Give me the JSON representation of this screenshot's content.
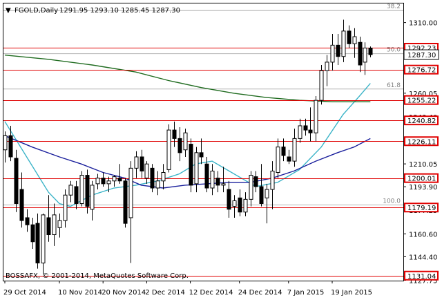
{
  "chart_data": {
    "type": "candlestick",
    "title": {
      "symbol": "FGOLD,Daily",
      "ohlc": "1291.95 1293.10 1285.45 1287.30"
    },
    "copyright": "BOSSAFX, © 2001-2014, MetaQuotes Software Corp.",
    "ylim": [
      1127.5,
      1323.5
    ],
    "y_ticks": [
      "1310.00",
      "1293.80",
      "1276.70",
      "1260.05",
      "1243.40",
      "1226.75",
      "1210.05",
      "1193.90",
      "1177.25",
      "1160.60",
      "1144.40",
      "1127.75"
    ],
    "x_labels": [
      "29 Oct 2014",
      "10 Nov 2014",
      "20 Nov 2014",
      "2 Dec 2014",
      "12 Dec 2014",
      "24 Dec 2014",
      "7 Jan 2015",
      "19 Jan 2015"
    ],
    "x_label_index": [
      0,
      10,
      18,
      26,
      34,
      43,
      52,
      60
    ],
    "levels": [
      {
        "label": "1292.23",
        "value": 1292.23
      },
      {
        "label": "1276.72",
        "value": 1276.72
      },
      {
        "label": "1255.22",
        "value": 1255.22
      },
      {
        "label": "1240.82",
        "value": 1240.82
      },
      {
        "label": "1226.11",
        "value": 1226.11
      },
      {
        "label": "1200.01",
        "value": 1200.01
      },
      {
        "label": "1179.19",
        "value": 1179.19
      },
      {
        "label": "1131.04",
        "value": 1131.04
      }
    ],
    "current_price": {
      "label": "1287.30",
      "value": 1287.3
    },
    "fibonacci": [
      {
        "label": "38.2",
        "value": 1318.5
      },
      {
        "label": "50.0",
        "value": 1288.0
      },
      {
        "label": "61.8",
        "value": 1263.0
      },
      {
        "label": "100.0",
        "value": 1181.0
      }
    ],
    "candles": [
      {
        "o": 1220,
        "h": 1233,
        "l": 1211,
        "c": 1230
      },
      {
        "o": 1230,
        "h": 1237,
        "l": 1212,
        "c": 1215
      },
      {
        "o": 1214,
        "h": 1220,
        "l": 1176,
        "c": 1182
      },
      {
        "o": 1192,
        "h": 1204,
        "l": 1165,
        "c": 1170
      },
      {
        "o": 1172,
        "h": 1178,
        "l": 1162,
        "c": 1167
      },
      {
        "o": 1167,
        "h": 1172,
        "l": 1150,
        "c": 1155
      },
      {
        "o": 1168,
        "h": 1175,
        "l": 1136,
        "c": 1140
      },
      {
        "o": 1140,
        "h": 1175,
        "l": 1132,
        "c": 1174
      },
      {
        "o": 1172,
        "h": 1188,
        "l": 1155,
        "c": 1160
      },
      {
        "o": 1160,
        "h": 1182,
        "l": 1152,
        "c": 1174
      },
      {
        "o": 1165,
        "h": 1175,
        "l": 1158,
        "c": 1170
      },
      {
        "o": 1170,
        "h": 1192,
        "l": 1165,
        "c": 1188
      },
      {
        "o": 1188,
        "h": 1198,
        "l": 1183,
        "c": 1195
      },
      {
        "o": 1194,
        "h": 1198,
        "l": 1178,
        "c": 1182
      },
      {
        "o": 1182,
        "h": 1205,
        "l": 1180,
        "c": 1202
      },
      {
        "o": 1202,
        "h": 1206,
        "l": 1175,
        "c": 1180
      },
      {
        "o": 1178,
        "h": 1198,
        "l": 1170,
        "c": 1195
      },
      {
        "o": 1196,
        "h": 1203,
        "l": 1192,
        "c": 1200
      },
      {
        "o": 1200,
        "h": 1204,
        "l": 1194,
        "c": 1196
      },
      {
        "o": 1196,
        "h": 1201,
        "l": 1190,
        "c": 1198
      },
      {
        "o": 1198,
        "h": 1202,
        "l": 1194,
        "c": 1201
      },
      {
        "o": 1200,
        "h": 1210,
        "l": 1196,
        "c": 1198
      },
      {
        "o": 1198,
        "h": 1200,
        "l": 1165,
        "c": 1168
      },
      {
        "o": 1172,
        "h": 1212,
        "l": 1140,
        "c": 1207
      },
      {
        "o": 1207,
        "h": 1219,
        "l": 1200,
        "c": 1215
      },
      {
        "o": 1215,
        "h": 1220,
        "l": 1200,
        "c": 1205
      },
      {
        "o": 1200,
        "h": 1212,
        "l": 1196,
        "c": 1210
      },
      {
        "o": 1207,
        "h": 1210,
        "l": 1190,
        "c": 1193
      },
      {
        "o": 1193,
        "h": 1205,
        "l": 1188,
        "c": 1198
      },
      {
        "o": 1198,
        "h": 1210,
        "l": 1192,
        "c": 1204
      },
      {
        "o": 1206,
        "h": 1238,
        "l": 1204,
        "c": 1234
      },
      {
        "o": 1234,
        "h": 1240,
        "l": 1222,
        "c": 1228
      },
      {
        "o": 1228,
        "h": 1236,
        "l": 1212,
        "c": 1218
      },
      {
        "o": 1220,
        "h": 1235,
        "l": 1215,
        "c": 1232
      },
      {
        "o": 1224,
        "h": 1228,
        "l": 1190,
        "c": 1195
      },
      {
        "o": 1196,
        "h": 1222,
        "l": 1190,
        "c": 1218
      },
      {
        "o": 1218,
        "h": 1228,
        "l": 1210,
        "c": 1215
      },
      {
        "o": 1210,
        "h": 1215,
        "l": 1190,
        "c": 1193
      },
      {
        "o": 1193,
        "h": 1210,
        "l": 1188,
        "c": 1205
      },
      {
        "o": 1200,
        "h": 1205,
        "l": 1190,
        "c": 1195
      },
      {
        "o": 1195,
        "h": 1208,
        "l": 1190,
        "c": 1196
      },
      {
        "o": 1192,
        "h": 1198,
        "l": 1172,
        "c": 1178
      },
      {
        "o": 1180,
        "h": 1188,
        "l": 1172,
        "c": 1184
      },
      {
        "o": 1186,
        "h": 1192,
        "l": 1173,
        "c": 1176
      },
      {
        "o": 1176,
        "h": 1190,
        "l": 1173,
        "c": 1185
      },
      {
        "o": 1185,
        "h": 1205,
        "l": 1180,
        "c": 1202
      },
      {
        "o": 1201,
        "h": 1205,
        "l": 1190,
        "c": 1194
      },
      {
        "o": 1194,
        "h": 1210,
        "l": 1180,
        "c": 1182
      },
      {
        "o": 1186,
        "h": 1196,
        "l": 1168,
        "c": 1192
      },
      {
        "o": 1192,
        "h": 1212,
        "l": 1178,
        "c": 1205
      },
      {
        "o": 1204,
        "h": 1228,
        "l": 1200,
        "c": 1222
      },
      {
        "o": 1222,
        "h": 1228,
        "l": 1212,
        "c": 1216
      },
      {
        "o": 1215,
        "h": 1220,
        "l": 1210,
        "c": 1212
      },
      {
        "o": 1212,
        "h": 1235,
        "l": 1208,
        "c": 1228
      },
      {
        "o": 1228,
        "h": 1242,
        "l": 1225,
        "c": 1237
      },
      {
        "o": 1237,
        "h": 1242,
        "l": 1230,
        "c": 1234
      },
      {
        "o": 1234,
        "h": 1250,
        "l": 1226,
        "c": 1232
      },
      {
        "o": 1232,
        "h": 1258,
        "l": 1226,
        "c": 1255
      },
      {
        "o": 1255,
        "h": 1280,
        "l": 1252,
        "c": 1276
      },
      {
        "o": 1276,
        "h": 1287,
        "l": 1265,
        "c": 1282
      },
      {
        "o": 1282,
        "h": 1302,
        "l": 1276,
        "c": 1294
      },
      {
        "o": 1294,
        "h": 1302,
        "l": 1280,
        "c": 1286
      },
      {
        "o": 1286,
        "h": 1312,
        "l": 1282,
        "c": 1304
      },
      {
        "o": 1304,
        "h": 1308,
        "l": 1292,
        "c": 1295
      },
      {
        "o": 1295,
        "h": 1306,
        "l": 1285,
        "c": 1300
      },
      {
        "o": 1296,
        "h": 1300,
        "l": 1275,
        "c": 1280
      },
      {
        "o": 1282,
        "h": 1296,
        "l": 1273,
        "c": 1292
      },
      {
        "o": 1291.95,
        "h": 1293.1,
        "l": 1285.45,
        "c": 1287.3
      }
    ],
    "series": [
      {
        "color": "#3cb4c8",
        "values": [
          {
            "i": 0,
            "v": 1240
          },
          {
            "i": 4,
            "v": 1215
          },
          {
            "i": 8,
            "v": 1190
          },
          {
            "i": 10,
            "v": 1182
          },
          {
            "i": 12,
            "v": 1180
          },
          {
            "i": 16,
            "v": 1188
          },
          {
            "i": 20,
            "v": 1193
          },
          {
            "i": 24,
            "v": 1195
          },
          {
            "i": 28,
            "v": 1198
          },
          {
            "i": 32,
            "v": 1203
          },
          {
            "i": 35,
            "v": 1210
          },
          {
            "i": 38,
            "v": 1212
          },
          {
            "i": 42,
            "v": 1203
          },
          {
            "i": 46,
            "v": 1194
          },
          {
            "i": 50,
            "v": 1197
          },
          {
            "i": 54,
            "v": 1206
          },
          {
            "i": 58,
            "v": 1222
          },
          {
            "i": 62,
            "v": 1245
          },
          {
            "i": 65,
            "v": 1258
          },
          {
            "i": 67,
            "v": 1267
          }
        ]
      },
      {
        "color": "#1a1f9c",
        "values": [
          {
            "i": 0,
            "v": 1230
          },
          {
            "i": 5,
            "v": 1222
          },
          {
            "i": 10,
            "v": 1215
          },
          {
            "i": 14,
            "v": 1210
          },
          {
            "i": 18,
            "v": 1204
          },
          {
            "i": 22,
            "v": 1200
          },
          {
            "i": 25,
            "v": 1195
          },
          {
            "i": 29,
            "v": 1193
          },
          {
            "i": 33,
            "v": 1195
          },
          {
            "i": 37,
            "v": 1196
          },
          {
            "i": 41,
            "v": 1197
          },
          {
            "i": 45,
            "v": 1197
          },
          {
            "i": 49,
            "v": 1200
          },
          {
            "i": 53,
            "v": 1205
          },
          {
            "i": 57,
            "v": 1212
          },
          {
            "i": 61,
            "v": 1218
          },
          {
            "i": 64,
            "v": 1222
          },
          {
            "i": 67,
            "v": 1228
          }
        ]
      },
      {
        "color": "#1f6b1f",
        "values": [
          {
            "i": 0,
            "v": 1287
          },
          {
            "i": 8,
            "v": 1284
          },
          {
            "i": 16,
            "v": 1280
          },
          {
            "i": 24,
            "v": 1275
          },
          {
            "i": 30,
            "v": 1269
          },
          {
            "i": 36,
            "v": 1264
          },
          {
            "i": 42,
            "v": 1260
          },
          {
            "i": 48,
            "v": 1257
          },
          {
            "i": 54,
            "v": 1255
          },
          {
            "i": 60,
            "v": 1254
          },
          {
            "i": 67,
            "v": 1254
          }
        ]
      }
    ],
    "grid": false,
    "colors": {
      "bull_candle": "#ffffff",
      "bear_candle": "#000000",
      "level_line": "#e00000",
      "fib_line": "#b4b4b4",
      "level_label_bg": "#e00000",
      "price_label_bg": "#ffffff"
    }
  }
}
